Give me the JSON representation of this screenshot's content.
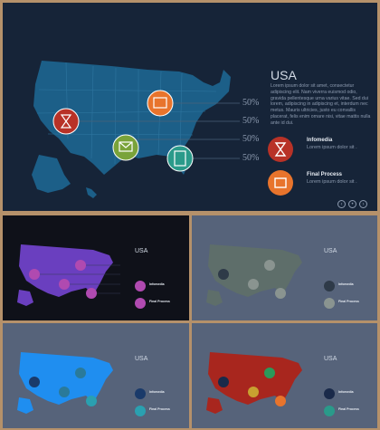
{
  "main": {
    "title": "USA",
    "paragraph": "Lorem ipsum dolor sit amet, consectetur adipiscing elit. Nam viverra euismod odio, gravida pellentesque urna varius vitae. Sed dui lorem, adipiscing in adipiscing et, interdum nec metus. Mauris ultricies, justo eu convallis placerat, felis enim ornare nisi, vitae mattis nulla ante id dui.",
    "percentages": [
      "50%",
      "50%",
      "50%",
      "50%"
    ],
    "legend": [
      {
        "label": "Infomedia",
        "text": "Lorem ipsum dolor sit .",
        "icon": "hourglass-icon",
        "color": "#b83227"
      },
      {
        "label": "Final Process",
        "text": "Lorem ipsum dolor sit .",
        "icon": "image-icon",
        "color": "#e8742c"
      }
    ],
    "nav": [
      "‹",
      "•",
      "›"
    ],
    "map_color": "#1c5f88",
    "markers": [
      {
        "icon": "image-icon",
        "color": "#e8742c"
      },
      {
        "icon": "hourglass-icon",
        "color": "#b83227"
      },
      {
        "icon": "envelope-icon",
        "color": "#7aa33a"
      },
      {
        "icon": "calculator-icon",
        "color": "#2a9a8a"
      }
    ]
  },
  "thumbnails": [
    {
      "title": "USA",
      "map_color": "#6a3fbf",
      "bg": "#0f1119",
      "legend_labels": [
        "Infomedia",
        "Final Process"
      ]
    },
    {
      "title": "USA",
      "map_color": "#5e6e6a",
      "bg": "#56637a",
      "legend_labels": [
        "Infomedia",
        "Final Process"
      ]
    },
    {
      "title": "USA",
      "map_color": "#1f8ef0",
      "bg": "#56637a",
      "legend_labels": [
        "Infomedia",
        "Final Process"
      ]
    },
    {
      "title": "USA",
      "map_color": "#a8261e",
      "bg": "#56637a",
      "legend_labels": [
        "Infomedia",
        "Final Process"
      ]
    }
  ]
}
